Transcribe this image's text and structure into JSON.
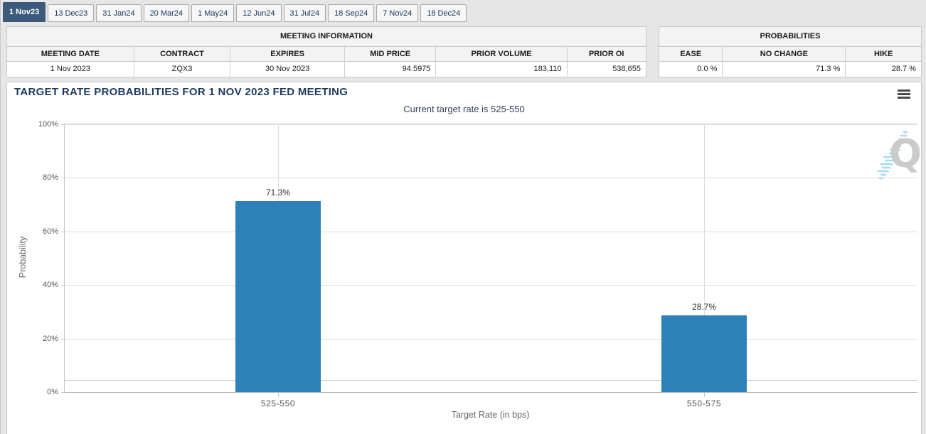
{
  "tabs": [
    {
      "label": "1 Nov23",
      "selected": true
    },
    {
      "label": "13 Dec23",
      "selected": false
    },
    {
      "label": "31 Jan24",
      "selected": false
    },
    {
      "label": "20 Mar24",
      "selected": false
    },
    {
      "label": "1 May24",
      "selected": false
    },
    {
      "label": "12 Jun24",
      "selected": false
    },
    {
      "label": "31 Jul24",
      "selected": false
    },
    {
      "label": "18 Sep24",
      "selected": false
    },
    {
      "label": "7 Nov24",
      "selected": false
    },
    {
      "label": "18 Dec24",
      "selected": false
    }
  ],
  "meeting_information": {
    "title": "MEETING INFORMATION",
    "columns": [
      "MEETING DATE",
      "CONTRACT",
      "EXPIRES",
      "MID PRICE",
      "PRIOR VOLUME",
      "PRIOR OI"
    ],
    "values": [
      "1 Nov 2023",
      "ZQX3",
      "30 Nov 2023",
      "94.5975",
      "183,110",
      "538,655"
    ]
  },
  "probabilities": {
    "title": "PROBABILITIES",
    "columns": [
      "EASE",
      "NO CHANGE",
      "HIKE"
    ],
    "values": [
      "0.0 %",
      "71.3 %",
      "28.7 %"
    ]
  },
  "chart": {
    "watermark_letter": "Q",
    "menu_icon": "hamburger-icon"
  },
  "chart_data": {
    "type": "bar",
    "title": "TARGET RATE PROBABILITIES FOR 1 NOV 2023 FED MEETING",
    "subtitle": "Current target rate is 525-550",
    "categories": [
      "525-550",
      "550-575"
    ],
    "values": [
      71.3,
      28.7
    ],
    "value_labels": [
      "71.3%",
      "28.7%"
    ],
    "xlabel": "Target Rate (in bps)",
    "ylabel": "Probability",
    "ylim": [
      0,
      100
    ],
    "yticks": [
      "0%",
      "20%",
      "40%",
      "60%",
      "80%",
      "100%"
    ],
    "grid": true,
    "legend": "none",
    "bar_color": "#2e80b9"
  }
}
